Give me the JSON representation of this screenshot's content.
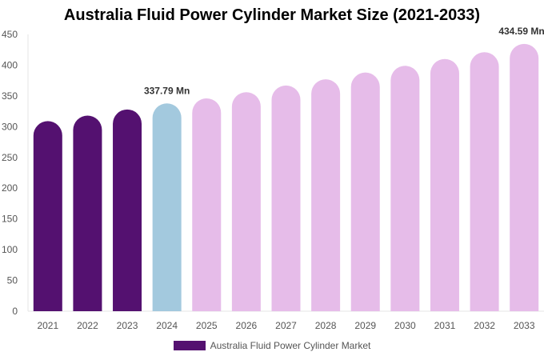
{
  "chart_data": {
    "type": "bar",
    "title": "Australia Fluid Power Cylinder Market Size (2021-2033)",
    "categories": [
      "2021",
      "2022",
      "2023",
      "2024",
      "2025",
      "2026",
      "2027",
      "2028",
      "2029",
      "2030",
      "2031",
      "2032",
      "2033"
    ],
    "series": [
      {
        "name": "Australia Fluid Power Cylinder Market",
        "values": [
          309,
          318,
          328,
          337.79,
          346,
          356,
          367,
          377,
          388,
          399,
          410,
          421,
          434.59
        ]
      }
    ],
    "data_labels": {
      "2024": "337.79 Mn",
      "2033": "434.59 Mn"
    },
    "ylim": [
      0,
      450
    ],
    "yticks": [
      0,
      50,
      100,
      150,
      200,
      250,
      300,
      350,
      400,
      450
    ],
    "grid": false,
    "legend": "bottom",
    "colors": {
      "historical": "#541170",
      "current": "#a3c9de",
      "forecast": "#e6bce9"
    }
  }
}
